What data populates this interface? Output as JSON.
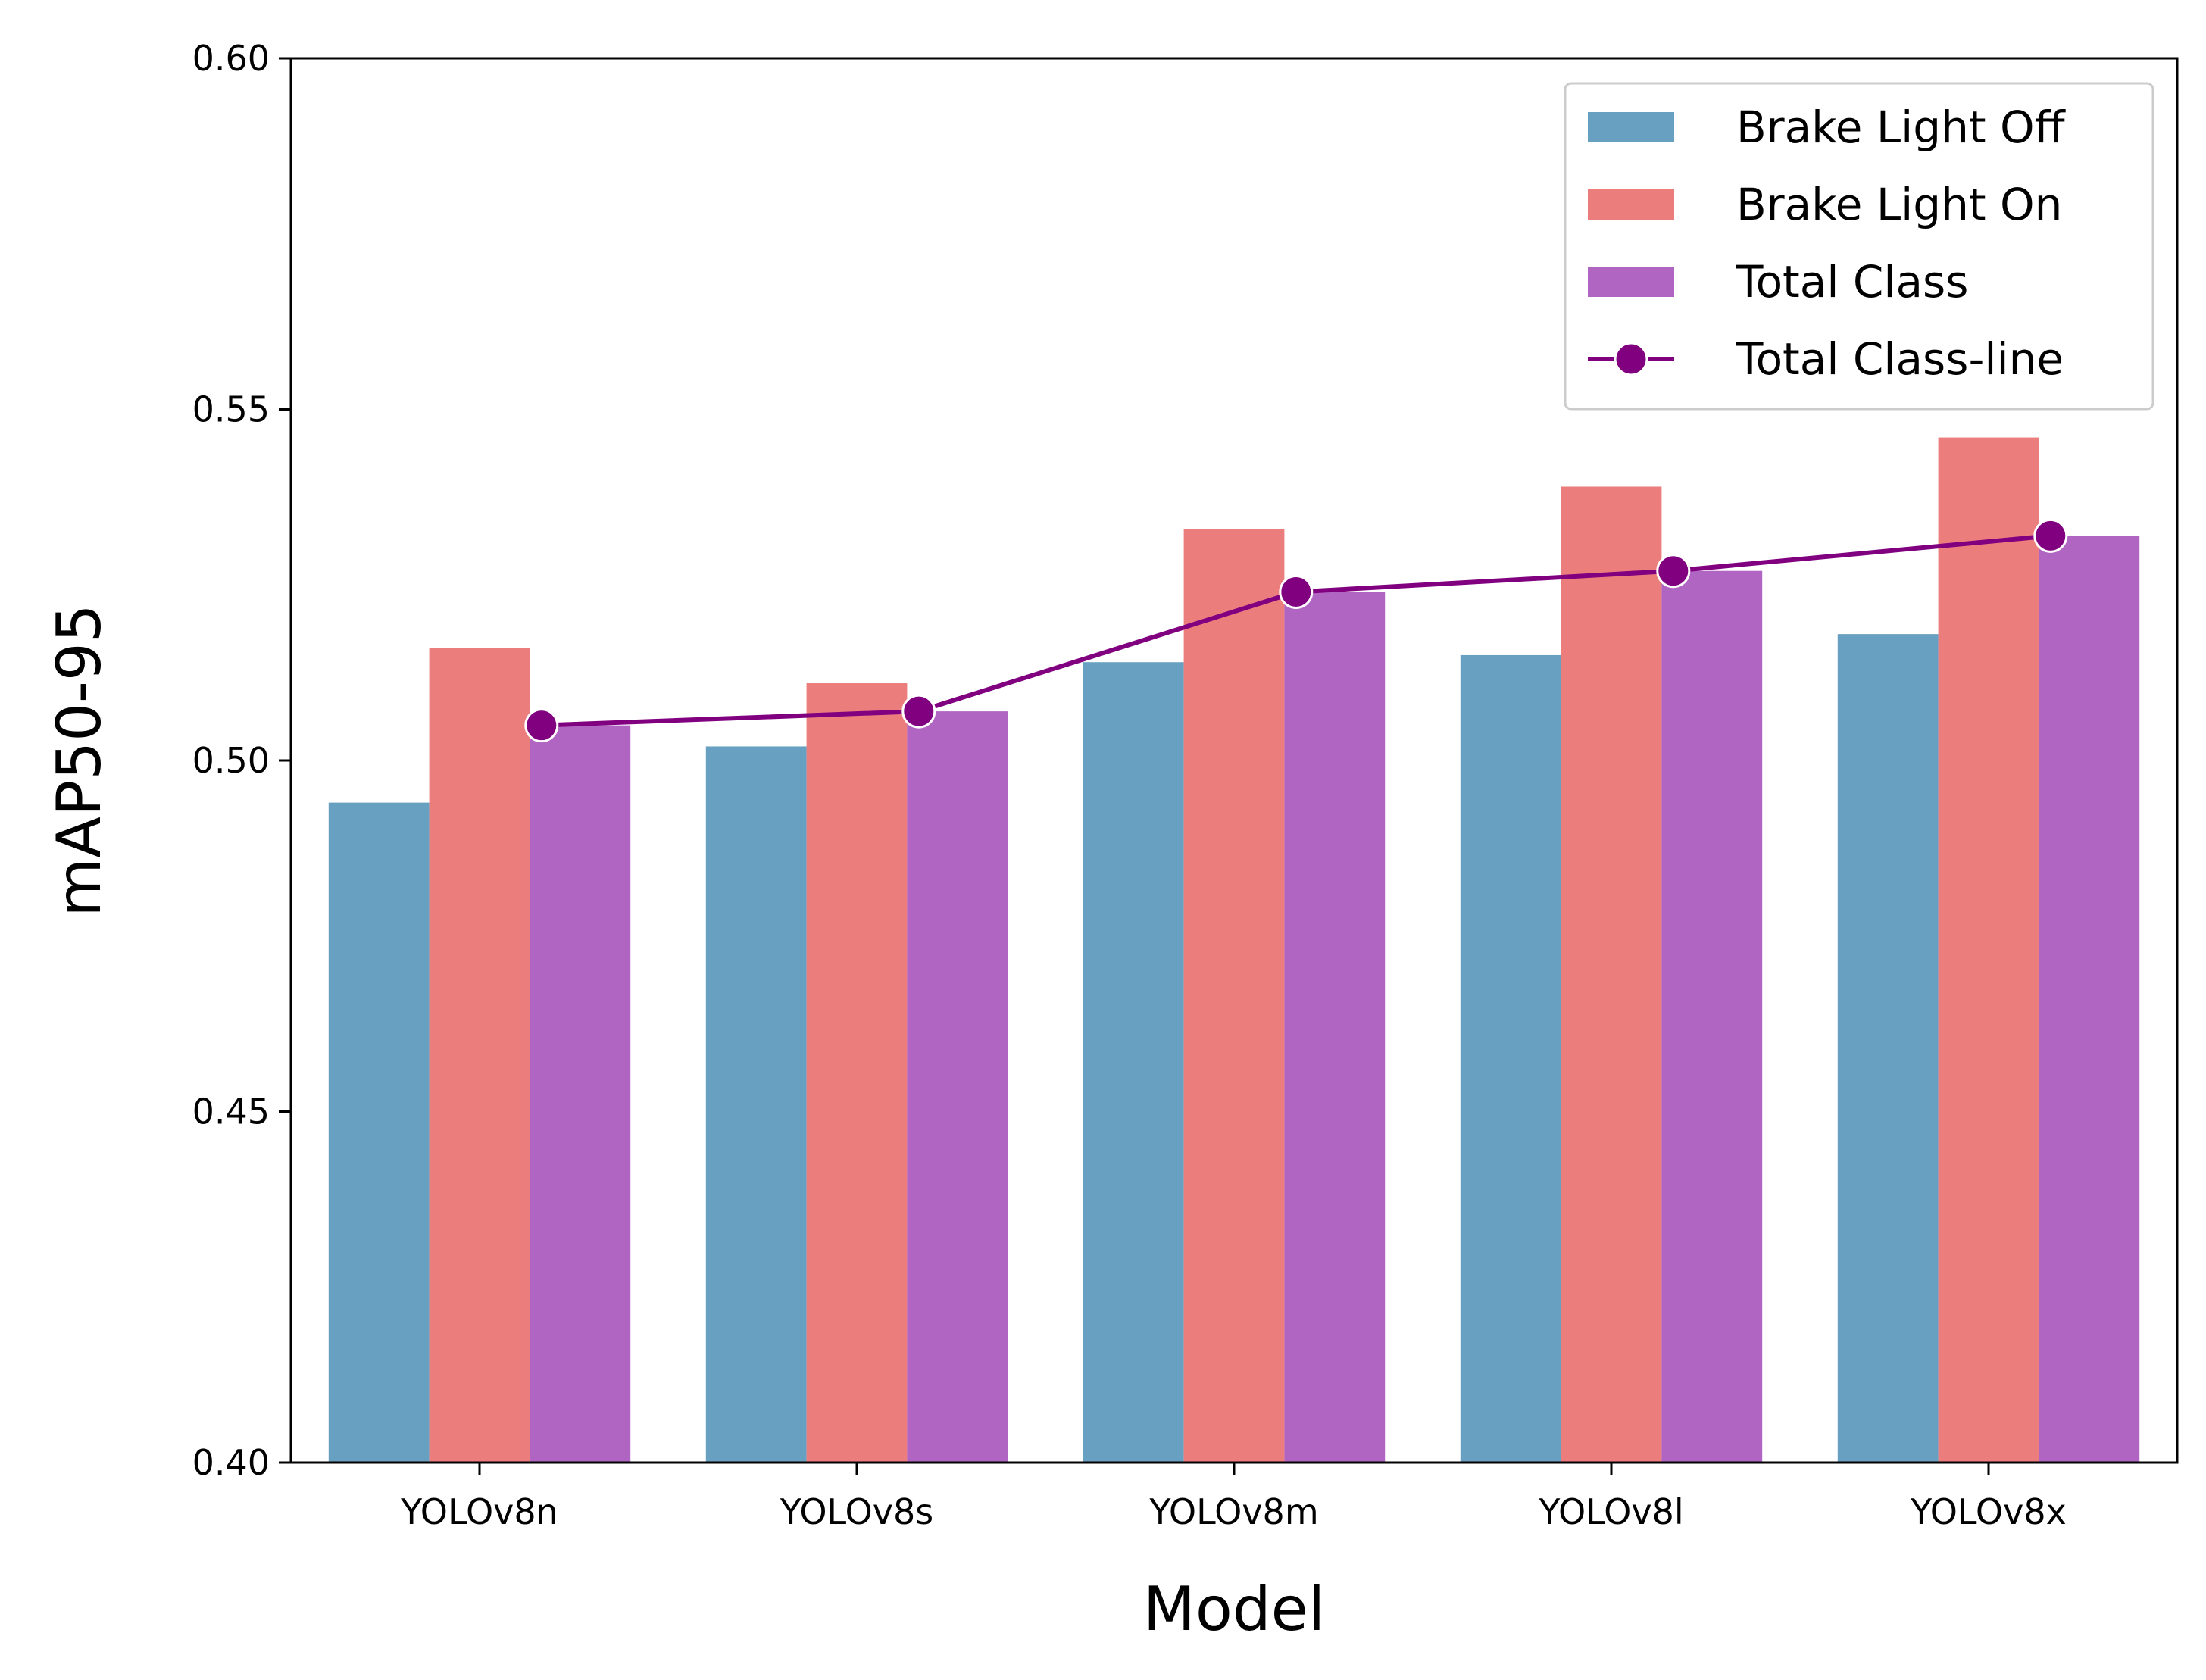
{
  "chart_data": {
    "type": "bar",
    "categories": [
      "YOLOv8n",
      "YOLOv8s",
      "YOLOv8m",
      "YOLOv8l",
      "YOLOv8x"
    ],
    "series": [
      {
        "name": "Brake Light Off",
        "values": [
          0.494,
          0.502,
          0.514,
          0.515,
          0.518
        ],
        "color": "#67a0c0"
      },
      {
        "name": "Brake Light On",
        "values": [
          0.516,
          0.511,
          0.533,
          0.539,
          0.546
        ],
        "color": "#ec7d7d"
      },
      {
        "name": "Total Class",
        "values": [
          0.505,
          0.507,
          0.524,
          0.527,
          0.532
        ],
        "color": "#b065c2"
      }
    ],
    "line_series": {
      "name": "Total Class-line",
      "values": [
        0.505,
        0.507,
        0.524,
        0.527,
        0.532
      ],
      "color": "#800080"
    },
    "xlabel": "Model",
    "ylabel": "mAP50-95",
    "ylim": [
      0.4,
      0.6
    ],
    "yticks": [
      "0.40",
      "0.45",
      "0.50",
      "0.55",
      "0.60"
    ],
    "grid": false,
    "legend_position": "top-right"
  }
}
